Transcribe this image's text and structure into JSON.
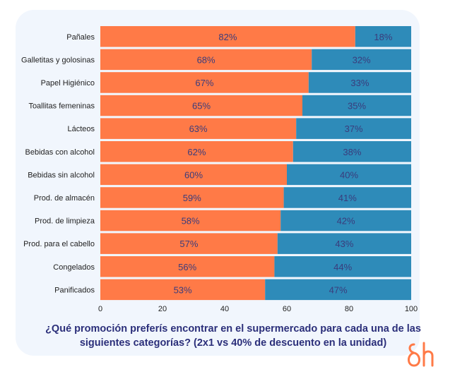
{
  "chart_data": {
    "type": "bar",
    "orientation": "horizontal",
    "stacked": true,
    "categories": [
      "Pañales",
      "Galletitas y golosinas",
      "Papel Higiénico",
      "Toallitas femeninas",
      "Lácteos",
      "Bebidas con alcohol",
      "Bebidas sin alcohol",
      "Prod. de almacén",
      "Prod. de limpieza",
      "Prod. para el cabello",
      "Congelados",
      "Panificados"
    ],
    "series": [
      {
        "values": [
          82,
          68,
          67,
          65,
          63,
          62,
          60,
          59,
          58,
          57,
          56,
          53
        ],
        "color": "#ff7a47"
      },
      {
        "values": [
          18,
          32,
          33,
          35,
          37,
          38,
          40,
          41,
          42,
          43,
          44,
          47
        ],
        "color": "#2e8bb9"
      }
    ],
    "xlim": [
      0,
      100
    ],
    "xticks": [
      0,
      20,
      40,
      60,
      80,
      100
    ],
    "grid": true,
    "title": "¿Qué promoción preferís encontrar en el supermercado para cada una de las siguientes categorías? (2x1 vs 40% de descuento en la unidad)"
  },
  "title_line1": "¿Qué promoción preferís encontrar en el supermercado para cada una de las",
  "title_line2": "siguientes categorías? (2x1 vs 40% de descuento en la unidad)",
  "logo_text": "8h"
}
